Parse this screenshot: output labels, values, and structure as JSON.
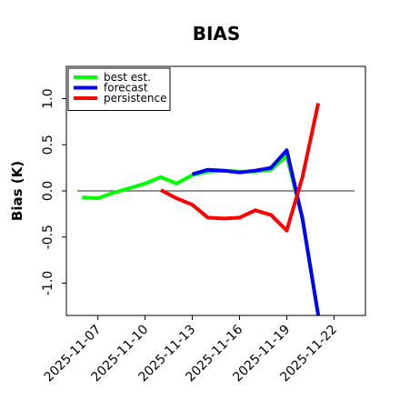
{
  "chart_data": {
    "type": "line",
    "title": "BIAS",
    "xlabel": "",
    "ylabel": "Bias (K)",
    "x_range": [
      "2025-11-05",
      "2025-11-24"
    ],
    "ylim": [
      -1.35,
      1.35
    ],
    "yticks": [
      1.0,
      0.5,
      0.0,
      -0.5,
      -1.0
    ],
    "ytick_labels": [
      "1.0",
      "0.5",
      "0.0",
      "-0.5",
      "-1.0"
    ],
    "xticks": [
      "2025-11-07",
      "2025-11-10",
      "2025-11-13",
      "2025-11-16",
      "2025-11-19",
      "2025-11-22"
    ],
    "xtick_labels": [
      "2025-11-07",
      "2025-11-10",
      "2025-11-13",
      "2025-11-16",
      "2025-11-19",
      "2025-11-22"
    ],
    "xtick_colors": [
      "#000000",
      "#000000",
      "#228b22",
      "#000000",
      "#000000",
      "#000000"
    ],
    "zero_line": 0.0,
    "grid": false,
    "legend_position": "top-left",
    "series": [
      {
        "name": "best est.",
        "color": "#00ff00",
        "x": [
          "2025-11-06",
          "2025-11-07",
          "2025-11-08",
          "2025-11-09",
          "2025-11-10",
          "2025-11-11",
          "2025-11-12",
          "2025-11-13",
          "2025-11-14",
          "2025-11-15",
          "2025-11-16",
          "2025-11-17",
          "2025-11-18",
          "2025-11-19",
          "2025-11-20",
          "2025-11-21"
        ],
        "values": [
          -0.07,
          -0.08,
          -0.02,
          0.03,
          0.08,
          0.15,
          0.08,
          0.17,
          0.21,
          0.22,
          0.21,
          0.21,
          0.23,
          0.38,
          -0.3,
          -1.35
        ]
      },
      {
        "name": "forecast",
        "color": "#0000ff",
        "x": [
          "2025-11-13",
          "2025-11-14",
          "2025-11-15",
          "2025-11-16",
          "2025-11-17",
          "2025-11-18",
          "2025-11-19",
          "2025-11-20",
          "2025-11-21"
        ],
        "values": [
          0.18,
          0.23,
          0.22,
          0.2,
          0.22,
          0.25,
          0.44,
          -0.3,
          -1.35
        ]
      },
      {
        "name": "persistence",
        "color": "#ff0000",
        "x": [
          "2025-11-11",
          "2025-11-12",
          "2025-11-13",
          "2025-11-14",
          "2025-11-15",
          "2025-11-16",
          "2025-11-17",
          "2025-11-18",
          "2025-11-19",
          "2025-11-20",
          "2025-11-21"
        ],
        "values": [
          0.01,
          -0.08,
          -0.15,
          -0.29,
          -0.3,
          -0.29,
          -0.21,
          -0.26,
          -0.43,
          0.15,
          0.95
        ]
      }
    ]
  }
}
